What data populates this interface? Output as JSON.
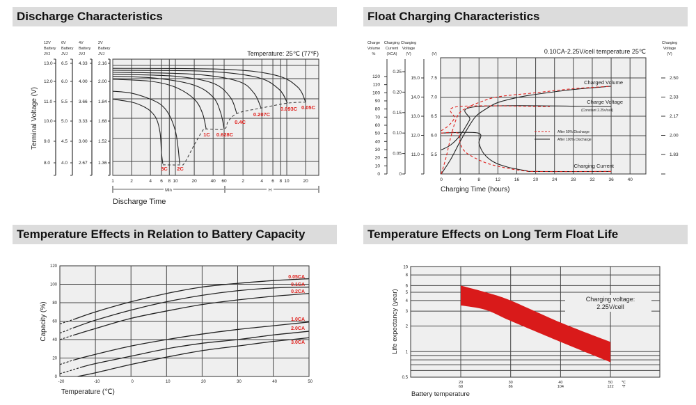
{
  "headers": [
    "Discharge Characteristics",
    "Float Charging Characteristics",
    "Temperature Effects in Relation to Battery Capacity",
    "Temperature Effects on Long Term Float Life"
  ],
  "chart_data": [
    {
      "type": "line",
      "title": "Discharge Characteristics",
      "annotation": "Temperature: 25℃ (77℉)",
      "xlabel": "Discharge Time",
      "ylabel": "Terminal Voltage (V)",
      "x_scale": "log",
      "x_unit_sections": [
        "Min",
        "H"
      ],
      "x_tick_labels": [
        "1",
        "2",
        "4",
        "6",
        "8",
        "10",
        "20",
        "40",
        "60",
        "2",
        "4",
        "6",
        "8",
        "10",
        "20"
      ],
      "x_ticks_minutes": [
        1,
        2,
        4,
        6,
        8,
        10,
        20,
        40,
        60,
        120,
        240,
        360,
        480,
        600,
        1200
      ],
      "y_axes": [
        {
          "header": [
            "12V",
            "Battery",
            "JVJ"
          ],
          "ticks": [
            "13.0",
            "12.0",
            "11.0",
            "10.0",
            "9.0",
            "8.0"
          ]
        },
        {
          "header": [
            "6V",
            "Battery",
            "JVJ"
          ],
          "ticks": [
            "6.5",
            "6.0",
            "5.5",
            "5.0",
            "4.5",
            "4.0"
          ]
        },
        {
          "header": [
            "4V",
            "Battery",
            "JVJ"
          ],
          "ticks": [
            "4.33",
            "4.00",
            "3.66",
            "3.33",
            "3.00",
            "2.67"
          ]
        },
        {
          "header": [
            "2V",
            "Battery",
            "JVJ"
          ],
          "ticks": [
            "2.16",
            "2.00",
            "1.84",
            "1.68",
            "1.52",
            "1.36"
          ]
        }
      ],
      "ylim": [
        7.5,
        13.2
      ],
      "grid": true,
      "series": [
        {
          "name": "3C",
          "points": [
            [
              1,
              11.2
            ],
            [
              2,
              11.05
            ],
            [
              3,
              10.85
            ],
            [
              4,
              10.6
            ],
            [
              5,
              10.2
            ],
            [
              5.7,
              9.5
            ],
            [
              6.0,
              8.5
            ],
            [
              6.3,
              7.95
            ]
          ]
        },
        {
          "name": "2C",
          "points": [
            [
              1,
              11.6
            ],
            [
              2,
              11.5
            ],
            [
              4,
              11.2
            ],
            [
              6,
              10.9
            ],
            [
              8,
              10.4
            ],
            [
              10,
              9.6
            ],
            [
              11,
              8.8
            ],
            [
              11.7,
              7.95
            ]
          ]
        },
        {
          "name": "1C",
          "points": [
            [
              1,
              12.2
            ],
            [
              4,
              12.1
            ],
            [
              10,
              11.8
            ],
            [
              20,
              11.2
            ],
            [
              27,
              10.5
            ],
            [
              31,
              9.7
            ]
          ]
        },
        {
          "name": "0.628C",
          "points": [
            [
              1,
              12.35
            ],
            [
              5,
              12.25
            ],
            [
              20,
              11.9
            ],
            [
              40,
              11.3
            ],
            [
              53,
              10.5
            ],
            [
              60,
              9.7
            ]
          ]
        },
        {
          "name": "0.4C",
          "points": [
            [
              1,
              12.45
            ],
            [
              10,
              12.35
            ],
            [
              40,
              12.0
            ],
            [
              75,
              11.3
            ],
            [
              95,
              10.5
            ]
          ]
        },
        {
          "name": "0.207C",
          "points": [
            [
              1,
              12.55
            ],
            [
              20,
              12.45
            ],
            [
              100,
              12.1
            ],
            [
              180,
              11.5
            ],
            [
              233,
              10.75
            ]
          ]
        },
        {
          "name": "0.093C",
          "points": [
            [
              1,
              12.65
            ],
            [
              30,
              12.6
            ],
            [
              200,
              12.3
            ],
            [
              450,
              11.7
            ],
            [
              614,
              11.0
            ]
          ]
        },
        {
          "name": "0.05C",
          "points": [
            [
              1,
              12.75
            ],
            [
              60,
              12.7
            ],
            [
              400,
              12.4
            ],
            [
              900,
              11.8
            ],
            [
              1200,
              11.05
            ]
          ]
        }
      ],
      "end_voltage_line": [
        [
          6.3,
          7.9
        ],
        [
          12,
          7.9
        ],
        [
          14,
          8.0
        ],
        [
          20,
          8.9
        ],
        [
          27,
          9.6
        ],
        [
          31,
          9.7
        ],
        [
          60,
          9.7
        ],
        [
          70,
          10.1
        ],
        [
          100,
          10.5
        ],
        [
          233,
          10.75
        ],
        [
          614,
          11.0
        ],
        [
          1200,
          11.05
        ]
      ],
      "label_color": "#e0201c"
    },
    {
      "type": "line",
      "title": "Float Charging Characteristics",
      "annotation": "0.10CA-2.25V/cell  temperature 25℃",
      "xlabel": "Charging Time (hours)",
      "xlim": [
        0,
        43.4
      ],
      "x_ticks": [
        "0",
        "4",
        "8",
        "12",
        "16",
        "20",
        "24",
        "28",
        "32",
        "36",
        "40"
      ],
      "left_axes": [
        {
          "header": [
            "Charge",
            "Volume",
            "%"
          ],
          "ticks": [
            "0",
            "10",
            "20",
            "30",
            "40",
            "50",
            "60",
            "70",
            "80",
            "90",
            "100",
            "110",
            "120"
          ]
        },
        {
          "header": [
            "Charging",
            "Current",
            "(XCA)"
          ],
          "ticks": [
            "0",
            "0.05",
            "0.10",
            "0.15",
            "0.20",
            "0.25"
          ]
        },
        {
          "header": [
            "Charging",
            "Voltage",
            "(V)"
          ],
          "ticks": [
            "15.0",
            "14.0",
            "13.0",
            "12.0",
            "11.0"
          ]
        },
        {
          "header": [
            "",
            "",
            "(V)"
          ],
          "ticks": [
            "7.5",
            "7.0",
            "6.5",
            "6.0",
            "5.5"
          ]
        }
      ],
      "right_axis": {
        "header": [
          "Charging",
          "Voltage",
          "(V)"
        ],
        "ticks": [
          "2.50",
          "2.33",
          "2.17",
          "2.00",
          "1.83"
        ]
      },
      "curve_labels": {
        "volume": "Charged Volume",
        "voltage": "Charge Voltage",
        "voltage_note": "(Constant 2.25v/cell)",
        "current": "Charging Current"
      },
      "legend": [
        {
          "name": "After  50% Discharge",
          "style": "dashed",
          "color": "#e0201c"
        },
        {
          "name": "After 100% Discharge",
          "style": "solid",
          "color": "#222222"
        }
      ],
      "legend_placement": "center-right",
      "grid": true,
      "series": [
        {
          "quantity": "volume",
          "discharge": "100%",
          "unit": "%",
          "points": [
            [
              0,
              0
            ],
            [
              2,
              18
            ],
            [
              4,
              40
            ],
            [
              6,
              60
            ],
            [
              7.5,
              72
            ],
            [
              10,
              82
            ],
            [
              12,
              88
            ],
            [
              16,
              94
            ],
            [
              20,
              98
            ],
            [
              28,
              104
            ],
            [
              36,
              108
            ]
          ]
        },
        {
          "quantity": "volume",
          "discharge": "50%",
          "unit": "%",
          "points": [
            [
              0,
              0
            ],
            [
              1,
              20
            ],
            [
              2,
              45
            ],
            [
              3,
              65
            ],
            [
              4,
              76
            ],
            [
              6,
              83
            ],
            [
              8,
              88
            ],
            [
              12,
              95
            ],
            [
              20,
              100
            ],
            [
              28,
              105
            ],
            [
              36,
              108
            ]
          ]
        },
        {
          "quantity": "voltage",
          "discharge": "100%",
          "unit": "V",
          "points": [
            [
              0,
              5.62
            ],
            [
              2,
              5.75
            ],
            [
              4,
              6.0
            ],
            [
              6,
              6.4
            ],
            [
              7.5,
              6.75
            ],
            [
              36,
              6.75
            ]
          ]
        },
        {
          "quantity": "voltage",
          "discharge": "50%",
          "unit": "V",
          "points": [
            [
              0,
              6.12
            ],
            [
              1.5,
              6.25
            ],
            [
              2.8,
              6.45
            ],
            [
              3.5,
              6.75
            ],
            [
              23,
              6.75
            ]
          ]
        },
        {
          "quantity": "current",
          "discharge": "100%",
          "unit": "CA",
          "points": [
            [
              0,
              0.1
            ],
            [
              7.8,
              0.1
            ],
            [
              8,
              0.075
            ],
            [
              9,
              0.05
            ],
            [
              11,
              0.03
            ],
            [
              14,
              0.017
            ],
            [
              18,
              0.008
            ],
            [
              20,
              0.006
            ],
            [
              36,
              0.006
            ]
          ]
        },
        {
          "quantity": "current",
          "discharge": "50%",
          "unit": "CA",
          "points": [
            [
              0,
              0.1
            ],
            [
              3.5,
              0.1
            ],
            [
              4,
              0.075
            ],
            [
              5,
              0.055
            ],
            [
              7,
              0.04
            ],
            [
              10,
              0.025
            ],
            [
              14,
              0.014
            ],
            [
              18,
              0.007
            ],
            [
              20,
              0.006
            ],
            [
              36,
              0.006
            ]
          ]
        }
      ]
    },
    {
      "type": "line",
      "title": "Temperature Effects in Relation to Battery Capacity",
      "xlabel": "Temperature (℃)",
      "ylabel": "Capacity (%)",
      "xlim": [
        -20,
        50
      ],
      "ylim": [
        0,
        120
      ],
      "x_ticks": [
        "-20",
        "-10",
        "0",
        "10",
        "20",
        "30",
        "40",
        "50"
      ],
      "y_ticks": [
        "0",
        "20",
        "40",
        "60",
        "80",
        "100",
        "120"
      ],
      "grid": true,
      "label_color": "#e0201c",
      "series": [
        {
          "name": "0.05CA",
          "dashed_until": -16,
          "points": [
            [
              -20,
              57
            ],
            [
              -16,
              62
            ],
            [
              -10,
              70
            ],
            [
              0,
              81
            ],
            [
              10,
              90
            ],
            [
              20,
              97
            ],
            [
              30,
              101
            ],
            [
              40,
              104
            ],
            [
              50,
              106
            ]
          ]
        },
        {
          "name": "0.1CA",
          "dashed_until": -16,
          "points": [
            [
              -20,
              47
            ],
            [
              -16,
              53
            ],
            [
              -10,
              61
            ],
            [
              0,
              72
            ],
            [
              10,
              81
            ],
            [
              20,
              88
            ],
            [
              30,
              93
            ],
            [
              40,
              96
            ],
            [
              50,
              97
            ]
          ]
        },
        {
          "name": "0.2CA",
          "dashed_until": -16,
          "points": [
            [
              -20,
              40
            ],
            [
              -16,
              45
            ],
            [
              -10,
              52
            ],
            [
              0,
              63
            ],
            [
              10,
              71
            ],
            [
              20,
              78
            ],
            [
              30,
              83
            ],
            [
              40,
              87
            ],
            [
              50,
              90
            ]
          ]
        },
        {
          "name": "1.0CA",
          "dashed_until": -16,
          "points": [
            [
              -20,
              13
            ],
            [
              -16,
              18
            ],
            [
              -10,
              24
            ],
            [
              0,
              33
            ],
            [
              10,
              40
            ],
            [
              20,
              46
            ],
            [
              30,
              51
            ],
            [
              40,
              55
            ],
            [
              50,
              59
            ]
          ]
        },
        {
          "name": "2.0CA",
          "dashed_until": -14,
          "points": [
            [
              -20,
              3
            ],
            [
              -14,
              10
            ],
            [
              -10,
              14
            ],
            [
              0,
              22
            ],
            [
              10,
              30
            ],
            [
              20,
              36
            ],
            [
              30,
              40
            ],
            [
              40,
              45
            ],
            [
              50,
              49
            ]
          ]
        },
        {
          "name": "3.0CA",
          "dashed_until": -15,
          "points": [
            [
              -15,
              0
            ],
            [
              -10,
              4
            ],
            [
              0,
              13
            ],
            [
              10,
              21
            ],
            [
              20,
              28
            ],
            [
              30,
              33
            ],
            [
              40,
              38
            ],
            [
              50,
              42
            ]
          ]
        }
      ]
    },
    {
      "type": "area",
      "title": "Temperature Effects on Long Term Float Life",
      "xlabel": "Battery temperature",
      "ylabel": "Life expectancy (year)",
      "y_scale": "log",
      "xlim": [
        10,
        60
      ],
      "ylim": [
        0.5,
        10
      ],
      "x_ticks": [
        {
          "c": "20",
          "f": "68"
        },
        {
          "c": "30",
          "f": "86"
        },
        {
          "c": "40",
          "f": "104"
        },
        {
          "c": "50",
          "f": "122"
        }
      ],
      "x_units": {
        "c": "℃",
        "f": "℉"
      },
      "y_ticks": [
        "10",
        "8",
        "6",
        "5",
        "4",
        "3",
        "2",
        "1",
        "0.5"
      ],
      "annotation": [
        "Charging voltage:",
        "2.25V/cell"
      ],
      "band_color": "#d91a1a",
      "band_upper": [
        [
          20,
          6.0
        ],
        [
          25,
          5.0
        ],
        [
          30,
          4.0
        ],
        [
          40,
          2.2
        ],
        [
          50,
          1.3
        ]
      ],
      "band_lower": [
        [
          20,
          3.5
        ],
        [
          25,
          3.1
        ],
        [
          30,
          2.3
        ],
        [
          40,
          1.3
        ],
        [
          50,
          0.75
        ]
      ],
      "grid": true
    }
  ]
}
